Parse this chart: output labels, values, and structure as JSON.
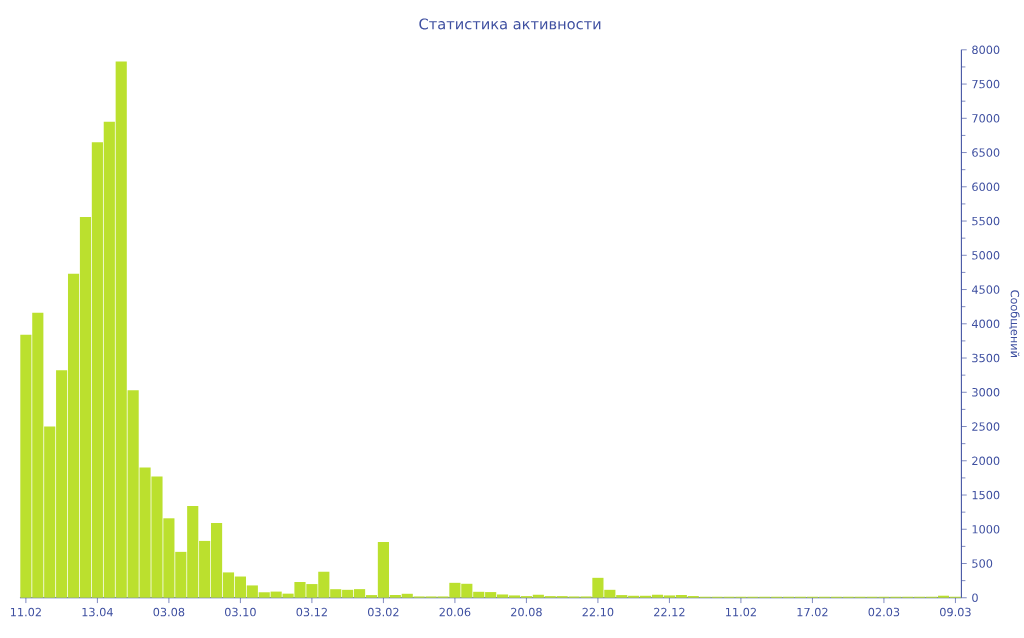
{
  "chart_data": {
    "type": "bar",
    "title": "Статистика активности",
    "ylabel": "Сообщений",
    "categories": [
      "11.02",
      null,
      null,
      null,
      null,
      null,
      "13.04",
      null,
      null,
      null,
      null,
      null,
      "03.08",
      null,
      null,
      null,
      null,
      null,
      "03.10",
      null,
      null,
      null,
      null,
      null,
      "03.12",
      null,
      null,
      null,
      null,
      null,
      "03.02",
      null,
      null,
      null,
      null,
      null,
      "20.06",
      null,
      null,
      null,
      null,
      null,
      "20.08",
      null,
      null,
      null,
      null,
      null,
      "22.10",
      null,
      null,
      null,
      null,
      null,
      "22.12",
      null,
      null,
      null,
      null,
      null,
      "11.02",
      null,
      null,
      null,
      null,
      null,
      "17.02",
      null,
      null,
      null,
      null,
      null,
      "02.03",
      null,
      null,
      null,
      null,
      null,
      "09.03"
    ],
    "values": [
      3840,
      4160,
      2500,
      3320,
      4730,
      5560,
      6650,
      6950,
      7830,
      3030,
      1900,
      1770,
      1160,
      670,
      1340,
      830,
      1090,
      370,
      310,
      180,
      80,
      90,
      60,
      230,
      200,
      380,
      125,
      116,
      126,
      39,
      814,
      40,
      58,
      19,
      19,
      19,
      218,
      204,
      87,
      83,
      48,
      34,
      24,
      44,
      24,
      24,
      19,
      19,
      291,
      116,
      39,
      29,
      29,
      44,
      34,
      40,
      25,
      15,
      15,
      15,
      15,
      15,
      15,
      15,
      15,
      15,
      15,
      15,
      15,
      15,
      15,
      15,
      15,
      15,
      15,
      15,
      15,
      30,
      15
    ],
    "color": "#bbe02e",
    "ylim": [
      0,
      8000
    ],
    "yticks": [
      0,
      500,
      1000,
      1500,
      2000,
      2500,
      3000,
      3500,
      4000,
      4500,
      5000,
      5500,
      6000,
      6500,
      7000,
      7500,
      8000
    ]
  }
}
